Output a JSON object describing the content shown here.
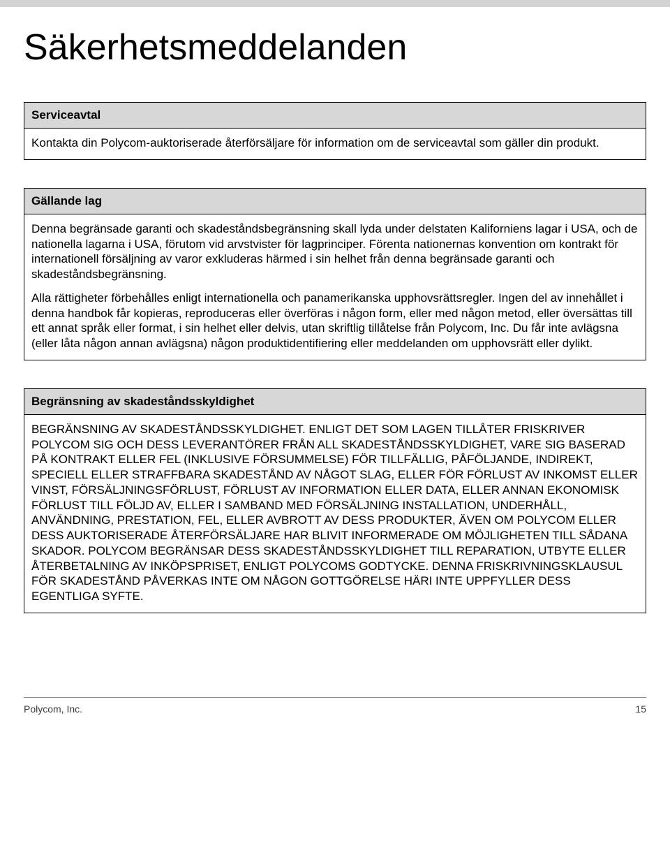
{
  "page": {
    "title": "Säkerhetsmeddelanden",
    "footer_company": "Polycom, Inc.",
    "footer_page": "15"
  },
  "boxes": [
    {
      "header": "Serviceavtal",
      "paragraphs": [
        "Kontakta din Polycom-auktoriserade återförsäljare för information om de serviceavtal som gäller din produkt."
      ]
    },
    {
      "header": "Gällande lag",
      "paragraphs": [
        "Denna begränsade garanti och skadeståndsbegränsning skall lyda under delstaten Kaliforniens lagar i USA, och de nationella lagarna i USA, förutom vid arvstvister för lagprinciper. Förenta nationernas konvention om kontrakt för internationell försäljning av varor exkluderas härmed i sin helhet från denna begränsade garanti och skadeståndsbegränsning.",
        "Alla rättigheter förbehålles enligt internationella och panamerikanska upphovsrättsregler. Ingen del av innehållet i denna handbok får kopieras, reproduceras eller överföras i någon form, eller med någon metod, eller översättas till ett annat språk eller format, i sin helhet eller delvis, utan skriftlig tillåtelse från Polycom, Inc. Du får inte avlägsna (eller låta någon annan avlägsna) någon produktidentifiering eller meddelanden om upphovsrätt eller dylikt."
      ]
    },
    {
      "header": "Begränsning av skadeståndsskyldighet",
      "paragraphs": [
        "BEGRÄNSNING AV SKADESTÅNDSSKYLDIGHET. ENLIGT DET SOM LAGEN TILLÅTER FRISKRIVER POLYCOM SIG OCH DESS LEVERANTÖRER FRÅN ALL SKADESTÅNDSSKYLDIGHET, VARE SIG BASERAD PÅ KONTRAKT ELLER FEL (INKLUSIVE FÖRSUMMELSE) FÖR TILLFÄLLIG, PÅFÖLJANDE, INDIREKT, SPECIELL ELLER STRAFFBARA SKADESTÅND AV NÅGOT SLAG, ELLER FÖR FÖRLUST AV INKOMST ELLER VINST, FÖRSÄLJNINGSFÖRLUST, FÖRLUST AV INFORMATION ELLER DATA, ELLER ANNAN EKONOMISK FÖRLUST TILL FÖLJD AV, ELLER I SAMBAND MED FÖRSÄLJNING INSTALLATION, UNDERHÅLL, ANVÄNDNING, PRESTATION, FEL, ELLER AVBROTT AV DESS PRODUKTER, ÄVEN OM POLYCOM ELLER DESS AUKTORISERADE ÅTERFÖRSÄLJARE HAR BLIVIT INFORMERADE OM MÖJLIGHETEN TILL SÅDANA SKADOR. POLYCOM BEGRÄNSAR DESS SKADESTÅNDSSKYLDIGHET TILL REPARATION, UTBYTE ELLER ÅTERBETALNING AV INKÖPSPRISET, ENLIGT POLYCOMS GODTYCKE. DENNA FRISKRIVNINGSKLAUSUL FÖR SKADESTÅND PÅVERKAS INTE OM NÅGON GOTTGÖRELSE HÄRI INTE UPPFYLLER DESS EGENTLIGA SYFTE."
      ]
    }
  ]
}
